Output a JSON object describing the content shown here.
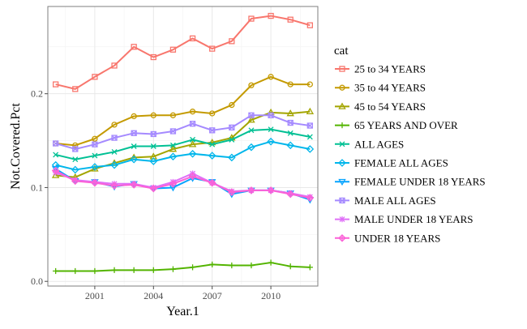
{
  "chart_data": {
    "type": "line",
    "xlabel": "Year.1",
    "ylabel": "Not.Covered.Pct",
    "xlim": [
      1998.6,
      2012.4
    ],
    "ylim": [
      -0.005,
      0.293
    ],
    "x_ticks": [
      2001,
      2004,
      2007,
      2010
    ],
    "x_tick_labels": [
      "2001",
      "2004",
      "2007",
      "2010"
    ],
    "y_ticks": [
      0.0,
      0.1,
      0.2
    ],
    "y_tick_labels": [
      "0.0",
      "0.1",
      "0.2"
    ],
    "grid": true,
    "background": "#ffffff",
    "legend": {
      "title": "cat",
      "position": "right"
    },
    "x": [
      1999,
      2000,
      2001,
      2002,
      2003,
      2004,
      2005,
      2006,
      2007,
      2008,
      2009,
      2010,
      2011,
      2012
    ],
    "series": [
      {
        "name": "25 to 34 YEARS",
        "color": "#F8766D",
        "marker": "square-open",
        "values": [
          0.21,
          0.205,
          0.218,
          0.23,
          0.25,
          0.239,
          0.247,
          0.259,
          0.248,
          0.256,
          0.28,
          0.283,
          0.279,
          0.273
        ]
      },
      {
        "name": "35 to 44 YEARS",
        "color": "#C49A00",
        "marker": "circle-open",
        "values": [
          0.147,
          0.145,
          0.152,
          0.167,
          0.176,
          0.177,
          0.177,
          0.181,
          0.179,
          0.188,
          0.209,
          0.218,
          0.21,
          0.21
        ]
      },
      {
        "name": "45 to 54 YEARS",
        "color": "#A3A500",
        "marker": "triangle-open",
        "values": [
          0.113,
          0.111,
          0.12,
          0.126,
          0.132,
          0.133,
          0.141,
          0.146,
          0.148,
          0.153,
          0.172,
          0.18,
          0.179,
          0.181
        ]
      },
      {
        "name": "65 YEARS AND OVER",
        "color": "#53B400",
        "marker": "plus",
        "values": [
          0.011,
          0.011,
          0.011,
          0.012,
          0.012,
          0.012,
          0.013,
          0.015,
          0.018,
          0.017,
          0.017,
          0.02,
          0.016,
          0.015
        ]
      },
      {
        "name": "ALL AGES",
        "color": "#00C094",
        "marker": "cross",
        "values": [
          0.135,
          0.13,
          0.134,
          0.138,
          0.144,
          0.144,
          0.145,
          0.151,
          0.146,
          0.151,
          0.161,
          0.162,
          0.158,
          0.154
        ]
      },
      {
        "name": "FEMALE ALL AGES",
        "color": "#00B6EB",
        "marker": "diamond-open",
        "values": [
          0.124,
          0.119,
          0.122,
          0.124,
          0.13,
          0.128,
          0.133,
          0.136,
          0.134,
          0.132,
          0.143,
          0.149,
          0.145,
          0.141
        ]
      },
      {
        "name": "FEMALE UNDER 18 YEARS",
        "color": "#06A4FF",
        "marker": "triangle-down-open",
        "values": [
          0.12,
          0.107,
          0.106,
          0.101,
          0.104,
          0.099,
          0.1,
          0.11,
          0.106,
          0.093,
          0.097,
          0.097,
          0.094,
          0.087
        ]
      },
      {
        "name": "MALE ALL AGES",
        "color": "#A58AFF",
        "marker": "square-cross",
        "values": [
          0.147,
          0.141,
          0.146,
          0.153,
          0.158,
          0.157,
          0.16,
          0.168,
          0.161,
          0.164,
          0.177,
          0.177,
          0.169,
          0.166
        ]
      },
      {
        "name": "MALE UNDER 18 YEARS",
        "color": "#DF70F8",
        "marker": "asterisk",
        "values": [
          0.116,
          0.108,
          0.106,
          0.104,
          0.104,
          0.1,
          0.106,
          0.115,
          0.105,
          0.096,
          0.097,
          0.097,
          0.094,
          0.09
        ]
      },
      {
        "name": "UNDER 18 YEARS",
        "color": "#FB61D7",
        "marker": "diamond-plus",
        "values": [
          0.118,
          0.107,
          0.105,
          0.102,
          0.103,
          0.099,
          0.104,
          0.112,
          0.105,
          0.095,
          0.097,
          0.097,
          0.093,
          0.089
        ]
      }
    ]
  }
}
